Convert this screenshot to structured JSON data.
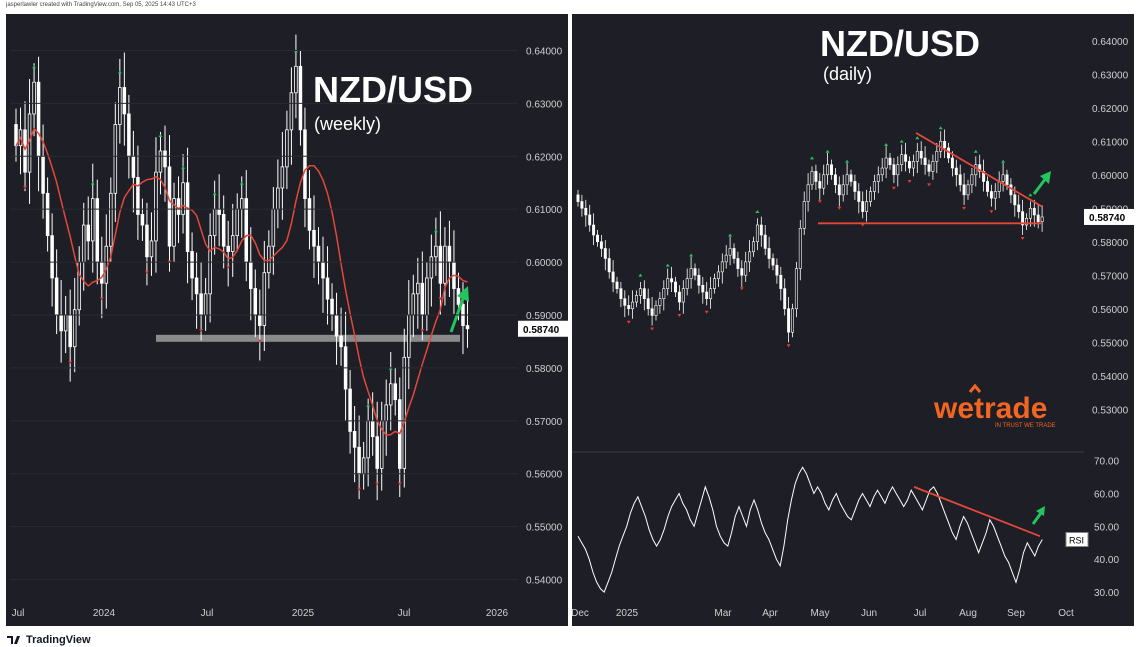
{
  "header": {
    "caption": "jasperlawler created with TradingView.com, Sep 05, 2025 14:43 UTC+3"
  },
  "footer": {
    "brand": "TradingView",
    "logo_icon": "tradingview-logo-icon"
  },
  "colors": {
    "bg": "#1e1e26",
    "candle": "#ffffff",
    "ma": "#e3483a",
    "trend": "#e3483a",
    "arrow": "#22c55e",
    "support": "#9e9e9e",
    "pivot_high": "#22c55e",
    "pivot_low": "#e53935",
    "brand": "#f26522"
  },
  "weekly": {
    "title": "NZD/USD",
    "subtitle": "(weekly)",
    "price_label": "0.58740",
    "y_ticks": [
      "0.64000",
      "0.63000",
      "0.62000",
      "0.61000",
      "0.60000",
      "0.59000",
      "0.58000",
      "0.57000",
      "0.56000",
      "0.55000",
      "0.54000"
    ],
    "x_ticks": [
      "Jul",
      "2024",
      "Jul",
      "2025",
      "Jul",
      "2026"
    ]
  },
  "daily": {
    "title": "NZD/USD",
    "subtitle": "(daily)",
    "price_label": "0.58740",
    "y_ticks": [
      "0.64000",
      "0.63000",
      "0.62000",
      "0.61000",
      "0.60000",
      "0.59000",
      "0.58000",
      "0.57000",
      "0.56000",
      "0.55000",
      "0.54000",
      "0.53000"
    ],
    "rsi_ticks": [
      "70.00",
      "60.00",
      "50.00",
      "40.00",
      "30.00"
    ],
    "rsi_label": "RSI",
    "x_ticks": [
      "Dec",
      "2025",
      "Mar",
      "Apr",
      "May",
      "Jun",
      "Jul",
      "Aug",
      "Sep",
      "Oct"
    ],
    "brand": {
      "name": "wetrade",
      "tagline": "IN TRUST WE TRADE"
    }
  },
  "chart_data": [
    {
      "type": "candlestick",
      "title": "NZD/USD",
      "subtitle": "(weekly)",
      "ylim": [
        0.535,
        0.645
      ],
      "last_price": 0.5874,
      "support_level": 0.5855,
      "series": [
        {
          "values": [
            0.622,
            0.625,
            0.617,
            0.628,
            0.634,
            0.62,
            0.613,
            0.605,
            0.597,
            0.59,
            0.587,
            0.59,
            0.584,
            0.591,
            0.6,
            0.607,
            0.604,
            0.612,
            0.6,
            0.596,
            0.603,
            0.613,
            0.626,
            0.633,
            0.628,
            0.62,
            0.616,
            0.609,
            0.607,
            0.601,
            0.604,
            0.617,
            0.621,
            0.618,
            0.603,
            0.612,
            0.609,
            0.615,
            0.602,
            0.597,
            0.594,
            0.59,
            0.594,
            0.605,
            0.61,
            0.609,
            0.603,
            0.602,
            0.605,
            0.61,
            0.612,
            0.6,
            0.595,
            0.59,
            0.588,
            0.598,
            0.603,
            0.61,
            0.614,
            0.618,
            0.625,
            0.632,
            0.637,
            0.625,
            0.612,
            0.606,
            0.603,
            0.6,
            0.597,
            0.593,
            0.59,
            0.586,
            0.584,
            0.576,
            0.568,
            0.565,
            0.56,
            0.563,
            0.57,
            0.567,
            0.561,
            0.57,
            0.573,
            0.577,
            0.574,
            0.561,
            0.582,
            0.59,
            0.594,
            0.596,
            0.59,
            0.597,
            0.601,
            0.603,
            0.596,
            0.603,
            0.6,
            0.595,
            0.592,
            0.588,
            0.5874
          ]
        }
      ]
    },
    {
      "type": "candlestick",
      "title": "NZD/USD",
      "subtitle": "(daily)",
      "ylim": [
        0.525,
        0.645
      ],
      "last_price": 0.5874,
      "support_level": 0.5855,
      "series": [
        {
          "values": [
            0.592,
            0.59,
            0.588,
            0.585,
            0.582,
            0.58,
            0.578,
            0.575,
            0.571,
            0.568,
            0.566,
            0.563,
            0.561,
            0.56,
            0.562,
            0.564,
            0.566,
            0.563,
            0.56,
            0.558,
            0.561,
            0.563,
            0.566,
            0.569,
            0.568,
            0.565,
            0.562,
            0.566,
            0.569,
            0.572,
            0.57,
            0.567,
            0.565,
            0.563,
            0.566,
            0.569,
            0.571,
            0.574,
            0.576,
            0.578,
            0.575,
            0.572,
            0.57,
            0.574,
            0.577,
            0.58,
            0.585,
            0.582,
            0.578,
            0.575,
            0.573,
            0.57,
            0.566,
            0.56,
            0.553,
            0.56,
            0.572,
            0.584,
            0.592,
            0.597,
            0.601,
            0.598,
            0.596,
            0.6,
            0.603,
            0.6,
            0.597,
            0.594,
            0.597,
            0.6,
            0.598,
            0.595,
            0.592,
            0.589,
            0.592,
            0.595,
            0.598,
            0.6,
            0.602,
            0.605,
            0.603,
            0.6,
            0.603,
            0.606,
            0.604,
            0.602,
            0.604,
            0.607,
            0.605,
            0.603,
            0.601,
            0.604,
            0.607,
            0.61,
            0.608,
            0.605,
            0.602,
            0.6,
            0.597,
            0.594,
            0.597,
            0.6,
            0.603,
            0.601,
            0.598,
            0.595,
            0.593,
            0.595,
            0.598,
            0.6,
            0.597,
            0.594,
            0.591,
            0.589,
            0.585,
            0.587,
            0.59,
            0.588,
            0.586,
            0.5874
          ]
        }
      ]
    },
    {
      "type": "line",
      "name": "RSI",
      "ylim": [
        27,
        72
      ],
      "series": [
        {
          "values": [
            47,
            45,
            43,
            40,
            36,
            33,
            31,
            30,
            33,
            36,
            40,
            44,
            47,
            50,
            54,
            57,
            59,
            56,
            53,
            49,
            46,
            44,
            46,
            49,
            53,
            56,
            58,
            60,
            57,
            55,
            52,
            50,
            54,
            58,
            62,
            59,
            55,
            50,
            47,
            45,
            44,
            48,
            53,
            56,
            53,
            50,
            55,
            58,
            55,
            51,
            48,
            46,
            43,
            40,
            38,
            44,
            52,
            58,
            63,
            66,
            68,
            66,
            63,
            60,
            62,
            60,
            57,
            55,
            58,
            60,
            57,
            55,
            53,
            52,
            55,
            58,
            60,
            58,
            56,
            59,
            61,
            59,
            57,
            60,
            62,
            60,
            58,
            56,
            58,
            61,
            59,
            57,
            55,
            58,
            61,
            62,
            60,
            57,
            54,
            51,
            48,
            46,
            50,
            53,
            51,
            48,
            45,
            42,
            45,
            48,
            52,
            50,
            47,
            44,
            41,
            39,
            36,
            33,
            37,
            42,
            45,
            43,
            41,
            44,
            46
          ]
        }
      ]
    }
  ]
}
